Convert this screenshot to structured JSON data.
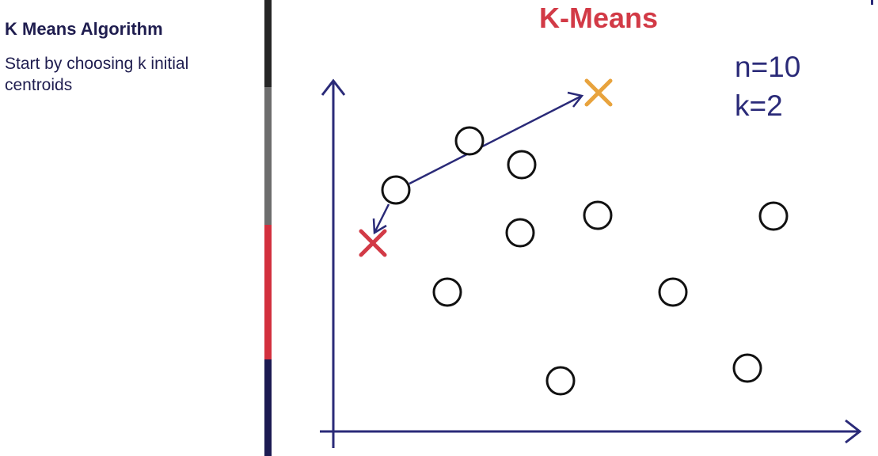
{
  "sidebar": {
    "title": "K Means Algorithm",
    "description": "Start by choosing k initial centroids"
  },
  "slide": {
    "title": "K-Means",
    "n_label": "n=10",
    "k_label": "k=2"
  },
  "colors": {
    "title": "#d23a46",
    "axis": "#2a2a78",
    "centroid_orange": "#e8a33d",
    "centroid_red": "#d23a46",
    "point_stroke": "#111111",
    "sidebar_text": "#1f1d4f"
  },
  "diagram": {
    "data_points": 10,
    "centroids": [
      {
        "name": "centroid-orange",
        "color": "orange"
      },
      {
        "name": "centroid-red",
        "color": "red"
      }
    ]
  }
}
